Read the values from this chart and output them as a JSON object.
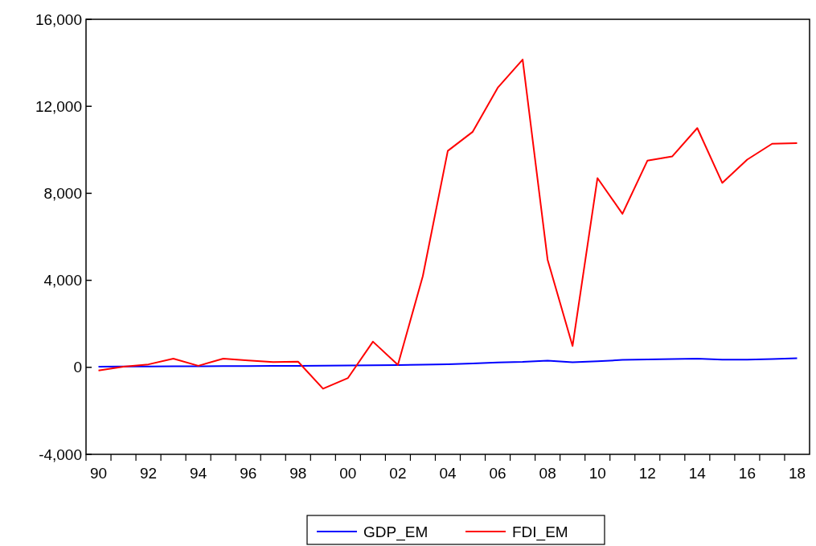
{
  "chart_data": {
    "type": "line",
    "categories": [
      "90",
      null,
      "92",
      null,
      "94",
      null,
      "96",
      null,
      "98",
      null,
      "00",
      null,
      "02",
      null,
      "04",
      null,
      "06",
      null,
      "08",
      null,
      "10",
      null,
      "12",
      null,
      "14",
      null,
      "16",
      null,
      "18"
    ],
    "series": [
      {
        "name": "GDP_EM",
        "color": "#0000ff",
        "values": [
          30,
          35,
          40,
          45,
          50,
          55,
          60,
          65,
          70,
          75,
          85,
          90,
          100,
          120,
          140,
          180,
          220,
          250,
          310,
          230,
          280,
          340,
          360,
          380,
          400,
          350,
          350,
          380,
          420
        ]
      },
      {
        "name": "FDI_EM",
        "color": "#ff0000",
        "values": [
          -150,
          30,
          135,
          400,
          70,
          400,
          320,
          245,
          260,
          -985,
          -490,
          1180,
          110,
          4200,
          9950,
          10830,
          12850,
          14150,
          4950,
          980,
          8700,
          7060,
          9500,
          9700,
          11000,
          8480,
          9550,
          10280,
          10310
        ]
      }
    ],
    "ylim": [
      -4000,
      16000
    ],
    "yticks": [
      {
        "value": -4000,
        "label": "-4,000"
      },
      {
        "value": 0,
        "label": "0"
      },
      {
        "value": 4000,
        "label": "4,000"
      },
      {
        "value": 8000,
        "label": "8,000"
      },
      {
        "value": 12000,
        "label": "12,000"
      },
      {
        "value": 16000,
        "label": "16,000"
      }
    ],
    "grid": false,
    "legend": "bottom",
    "line_style": "solid",
    "marker": "none"
  }
}
